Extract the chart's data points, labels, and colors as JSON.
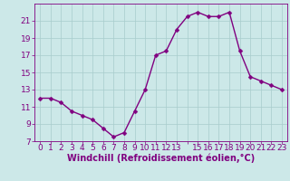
{
  "x_values": [
    0,
    1,
    2,
    3,
    4,
    5,
    6,
    7,
    8,
    9,
    10,
    11,
    12,
    13,
    14,
    15,
    16,
    17,
    18,
    19,
    20,
    21,
    22,
    23
  ],
  "y_values": [
    12,
    12,
    11.5,
    10.5,
    10,
    9.5,
    8.5,
    7.5,
    8,
    10.5,
    13,
    17,
    17.5,
    20,
    21.5,
    22,
    21.5,
    21.5,
    22,
    17.5,
    14.5,
    14,
    13.5,
    13
  ],
  "line_color": "#800080",
  "marker_color": "#800080",
  "bg_color": "#cce8e8",
  "grid_color": "#a8cccc",
  "xlabel": "Windchill (Refroidissement éolien,°C)",
  "xlim": [
    -0.5,
    23.5
  ],
  "ylim": [
    7,
    23
  ],
  "yticks": [
    7,
    9,
    11,
    13,
    15,
    17,
    19,
    21
  ],
  "xticks": [
    0,
    1,
    2,
    3,
    4,
    5,
    6,
    7,
    8,
    9,
    10,
    11,
    12,
    13,
    14,
    15,
    16,
    17,
    18,
    19,
    20,
    21,
    22,
    23
  ],
  "xtick_labels": [
    "0",
    "1",
    "2",
    "3",
    "4",
    "5",
    "6",
    "7",
    "8",
    "9",
    "10",
    "11",
    "12",
    "13",
    "",
    "15",
    "16",
    "17",
    "18",
    "19",
    "20",
    "21",
    "22",
    "23"
  ],
  "label_color": "#800080",
  "tick_color": "#800080",
  "font_size": 6.5,
  "xlabel_font_size": 7,
  "marker_size": 2.5,
  "line_width": 1.0
}
